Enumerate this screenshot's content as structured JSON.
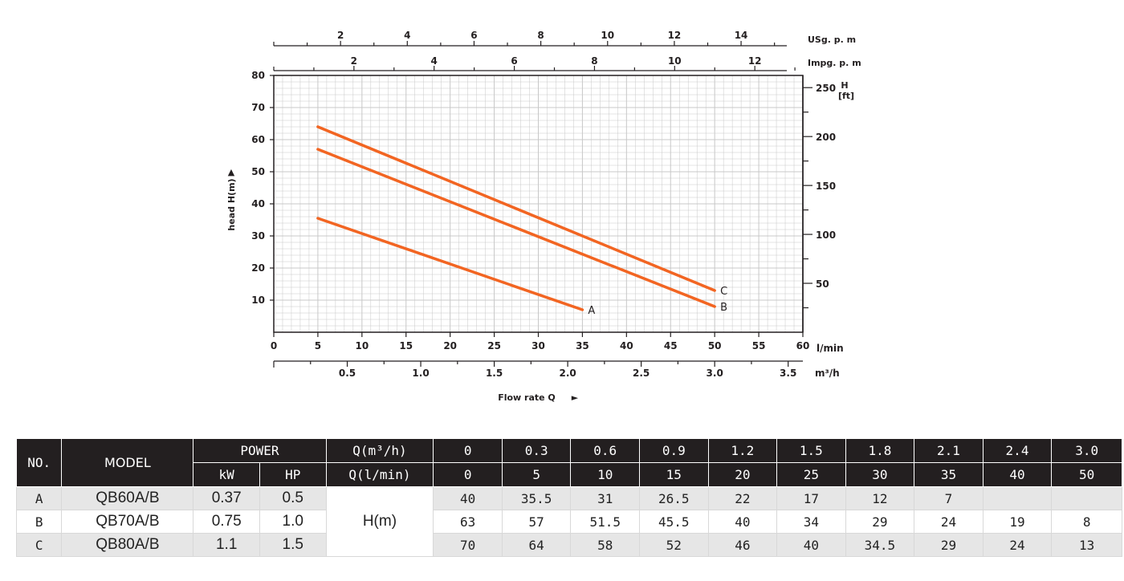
{
  "chart_data": {
    "type": "line",
    "xlabel": "Flow rate Q",
    "xunit": "l/min",
    "ylabel": "head H(m)",
    "xlim": [
      0,
      60
    ],
    "ylim": [
      0,
      80
    ],
    "x_ticks": [
      "0",
      "5",
      "10",
      "15",
      "20",
      "25",
      "30",
      "35",
      "40",
      "45",
      "50",
      "55",
      "60"
    ],
    "y_ticks": [
      "10",
      "20",
      "30",
      "40",
      "50",
      "60",
      "70",
      "80"
    ],
    "m3h_axis": {
      "unit": "m³/h",
      "ticks": [
        "0.5",
        "1.0",
        "1.5",
        "2.0",
        "2.5",
        "3.0",
        "3.5"
      ]
    },
    "usgpm_axis": {
      "unit": "USg. p. m",
      "ticks": [
        "2",
        "4",
        "6",
        "8",
        "10",
        "12",
        "14"
      ]
    },
    "impgpm_axis": {
      "unit": "Impg. p. m",
      "ticks": [
        "2",
        "4",
        "6",
        "8",
        "10",
        "12"
      ]
    },
    "ft_axis": {
      "unit": "H [ft]",
      "ticks": [
        "50",
        "100",
        "150",
        "200",
        "250"
      ]
    },
    "grid": true,
    "series": [
      {
        "name": "A",
        "x": [
          5,
          35
        ],
        "y": [
          35.5,
          7
        ]
      },
      {
        "name": "B",
        "x": [
          5,
          50
        ],
        "y": [
          57,
          8
        ]
      },
      {
        "name": "C",
        "x": [
          5,
          50
        ],
        "y": [
          64,
          13
        ]
      }
    ],
    "colors": {
      "curve": "#f26522",
      "grid": "#c8c8c8",
      "axis": "#231f20"
    }
  },
  "table": {
    "no_label": "NO.",
    "model_label": "MODEL",
    "power_label": "POWER",
    "kw_label": "kW",
    "hp_label": "HP",
    "q_m3h_label": "Q(m³/h)",
    "q_lmin_label": "Q(l/min)",
    "h_label": "H(m)",
    "q_m3h": [
      "0",
      "0.3",
      "0.6",
      "0.9",
      "1.2",
      "1.5",
      "1.8",
      "2.1",
      "2.4",
      "3.0"
    ],
    "q_lmin": [
      "0",
      "5",
      "10",
      "15",
      "20",
      "25",
      "30",
      "35",
      "40",
      "50"
    ],
    "rows": [
      {
        "no": "A",
        "model": "QB60A/B",
        "kw": "0.37",
        "hp": "0.5",
        "h": [
          "40",
          "35.5",
          "31",
          "26.5",
          "22",
          "17",
          "12",
          "7",
          "",
          ""
        ]
      },
      {
        "no": "B",
        "model": "QB70A/B",
        "kw": "0.75",
        "hp": "1.0",
        "h": [
          "63",
          "57",
          "51.5",
          "45.5",
          "40",
          "34",
          "29",
          "24",
          "19",
          "8"
        ]
      },
      {
        "no": "C",
        "model": "QB80A/B",
        "kw": "1.1",
        "hp": "1.5",
        "h": [
          "70",
          "64",
          "58",
          "52",
          "46",
          "40",
          "34.5",
          "29",
          "24",
          "13"
        ]
      }
    ]
  }
}
